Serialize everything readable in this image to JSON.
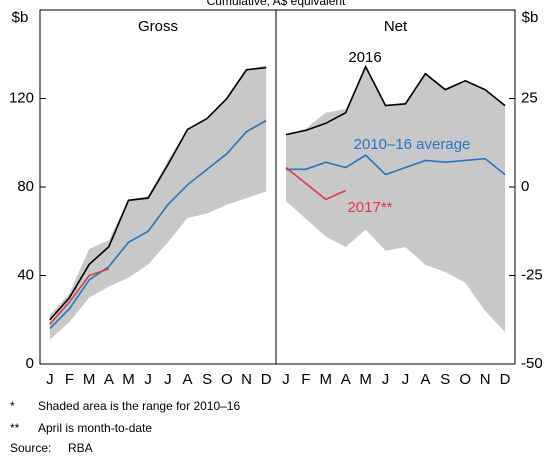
{
  "title": "Cumulative, A$ equivalent",
  "chart_data": [
    {
      "type": "line",
      "title": "Gross",
      "y_label": "$b",
      "categories": [
        "J",
        "F",
        "M",
        "A",
        "M",
        "J",
        "J",
        "A",
        "S",
        "O",
        "N",
        "D"
      ],
      "ylim": [
        0,
        160
      ],
      "yticks": [
        0,
        40,
        80,
        120
      ],
      "range_color": "#c8c8c8",
      "range_low": [
        11,
        19,
        30,
        35,
        39,
        45,
        55,
        66,
        68,
        72,
        75,
        78
      ],
      "range_high": [
        22,
        32,
        52,
        56,
        74,
        76,
        92,
        106,
        111,
        120,
        133,
        135
      ],
      "series": [
        {
          "color": "#000000",
          "values": [
            20,
            30,
            45,
            53,
            74,
            75,
            90,
            106,
            111,
            120,
            133,
            134
          ]
        },
        {
          "color": "#1f77c8",
          "values": [
            16,
            25,
            38,
            44,
            55,
            60,
            72,
            81,
            88,
            95,
            105,
            110
          ]
        },
        {
          "color": "#e8364a",
          "values": [
            18,
            28,
            40,
            43,
            null,
            null,
            null,
            null,
            null,
            null,
            null,
            null
          ]
        }
      ]
    },
    {
      "type": "line",
      "title": "Net",
      "y_label": "$b",
      "categories": [
        "J",
        "F",
        "M",
        "A",
        "M",
        "J",
        "J",
        "A",
        "S",
        "O",
        "N",
        "D"
      ],
      "ylim": [
        -50,
        50
      ],
      "yticks": [
        -50,
        -25,
        0,
        25
      ],
      "range_color": "#c8c8c8",
      "range_low": [
        -4,
        -9,
        -14,
        -17,
        -12,
        -18,
        -17,
        -22,
        -24,
        -27,
        -35,
        -41
      ],
      "range_high": [
        15,
        16.5,
        21,
        22,
        34,
        23,
        23.5,
        32,
        27.5,
        30,
        27.5,
        23
      ],
      "series": [
        {
          "name": "2016",
          "color": "#000000",
          "values": [
            14.8,
            16,
            18,
            21,
            34,
            23,
            23.5,
            32,
            27.5,
            30,
            27.5,
            23
          ]
        },
        {
          "name": "2010–16 average",
          "color": "#1f77c8",
          "values": [
            5,
            5,
            7,
            5.5,
            9,
            3.5,
            5.5,
            7.5,
            7,
            7.5,
            8,
            3.5
          ]
        },
        {
          "name": "2017**",
          "color": "#e8364a",
          "values": [
            5.5,
            1,
            -3.5,
            -1,
            null,
            null,
            null,
            null,
            null,
            null,
            null,
            null
          ]
        }
      ]
    }
  ],
  "notes": [
    {
      "marker": "*",
      "text": "Shaded area is the range for 2010–16"
    },
    {
      "marker": "**",
      "text": "April is month-to-date"
    }
  ],
  "source": {
    "label": "Source:",
    "text": "RBA"
  }
}
